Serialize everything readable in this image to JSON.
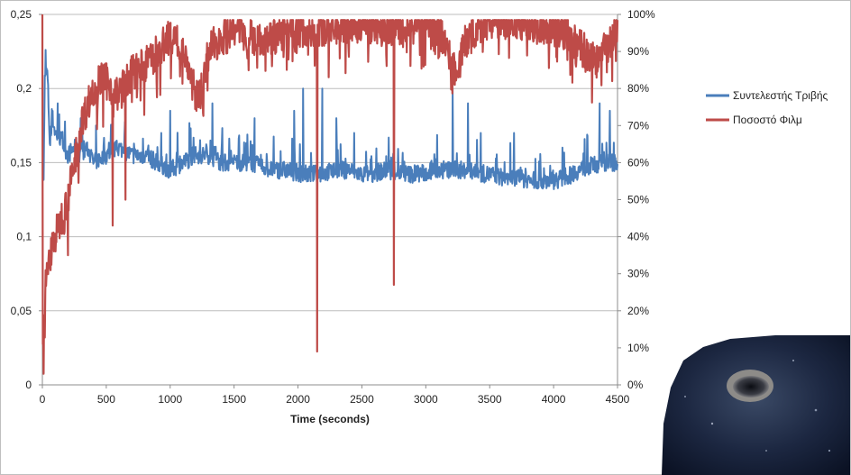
{
  "chart_data": {
    "type": "line",
    "title": "",
    "xlabel": "Time (seconds)",
    "ylabel": "",
    "y2label": "",
    "xlim": [
      0,
      4500
    ],
    "ylim": [
      0,
      0.25
    ],
    "y2lim": [
      0,
      1.0
    ],
    "x_ticks": [
      0,
      500,
      1000,
      1500,
      2000,
      2500,
      3000,
      3500,
      4000,
      4500
    ],
    "x_tick_labels": [
      "0",
      "500",
      "1000",
      "1500",
      "2000",
      "2500",
      "3000",
      "3500",
      "4000",
      "4500"
    ],
    "y_ticks": [
      0,
      0.05,
      0.1,
      0.15,
      0.2,
      0.25
    ],
    "y_tick_labels": [
      "0",
      "0,05",
      "0,1",
      "0,15",
      "0,2",
      "0,25"
    ],
    "y2_ticks": [
      0,
      0.1,
      0.2,
      0.3,
      0.4,
      0.5,
      0.6,
      0.7,
      0.8,
      0.9,
      1.0
    ],
    "y2_tick_labels": [
      "0%",
      "10%",
      "20%",
      "30%",
      "40%",
      "50%",
      "60%",
      "70%",
      "80%",
      "90%",
      "100%"
    ],
    "grid": "horizontal",
    "legend_position": "right",
    "series": [
      {
        "name": "Συντελεστής Τριβής",
        "axis": "left",
        "color": "#4a7ebb",
        "x": [
          0,
          10,
          20,
          40,
          60,
          80,
          100,
          150,
          200,
          250,
          300,
          350,
          400,
          500,
          600,
          700,
          800,
          900,
          1000,
          1100,
          1200,
          1300,
          1400,
          1500,
          1600,
          1700,
          1800,
          1900,
          2000,
          2100,
          2200,
          2300,
          2400,
          2500,
          2600,
          2700,
          2800,
          2900,
          3000,
          3100,
          3200,
          3300,
          3400,
          3500,
          3600,
          3700,
          3800,
          3900,
          4000,
          4100,
          4200,
          4300,
          4400,
          4500
        ],
        "values": [
          0.15,
          0.14,
          0.21,
          0.21,
          0.16,
          0.18,
          0.17,
          0.165,
          0.155,
          0.16,
          0.155,
          0.16,
          0.15,
          0.155,
          0.16,
          0.155,
          0.155,
          0.15,
          0.145,
          0.15,
          0.155,
          0.155,
          0.15,
          0.15,
          0.15,
          0.148,
          0.145,
          0.145,
          0.143,
          0.142,
          0.143,
          0.145,
          0.145,
          0.142,
          0.143,
          0.145,
          0.143,
          0.142,
          0.143,
          0.145,
          0.145,
          0.145,
          0.143,
          0.142,
          0.14,
          0.14,
          0.138,
          0.138,
          0.138,
          0.14,
          0.145,
          0.148,
          0.15,
          0.15
        ],
        "spikes": [
          [
            120,
            0.19
          ],
          [
            300,
            0.18
          ],
          [
            420,
            0.175
          ],
          [
            930,
            0.17
          ],
          [
            1000,
            0.185
          ],
          [
            1330,
            0.19
          ],
          [
            1660,
            0.18
          ],
          [
            1970,
            0.185
          ],
          [
            2040,
            0.2
          ],
          [
            2190,
            0.2
          ],
          [
            2300,
            0.18
          ],
          [
            2440,
            0.17
          ],
          [
            3210,
            0.2
          ],
          [
            3330,
            0.19
          ],
          [
            3430,
            0.17
          ],
          [
            3690,
            0.17
          ],
          [
            4360,
            0.19
          ],
          [
            4440,
            0.185
          ]
        ]
      },
      {
        "name": "Ποσοστό Φιλμ",
        "axis": "right",
        "color": "#be4b48",
        "x": [
          0,
          10,
          20,
          40,
          60,
          80,
          100,
          150,
          200,
          250,
          300,
          350,
          400,
          450,
          500,
          550,
          600,
          650,
          700,
          800,
          900,
          1000,
          1100,
          1150,
          1200,
          1250,
          1300,
          1400,
          1500,
          1600,
          1700,
          1800,
          1900,
          2000,
          2100,
          2200,
          2300,
          2400,
          2500,
          2600,
          2700,
          2800,
          2900,
          3000,
          3100,
          3150,
          3200,
          3250,
          3300,
          3400,
          3500,
          3600,
          3700,
          3800,
          3900,
          4000,
          4100,
          4200,
          4300,
          4400,
          4500
        ],
        "values": [
          0.05,
          0.2,
          0.25,
          0.3,
          0.35,
          0.38,
          0.4,
          0.45,
          0.5,
          0.6,
          0.7,
          0.75,
          0.8,
          0.82,
          0.82,
          0.8,
          0.78,
          0.82,
          0.84,
          0.86,
          0.9,
          0.94,
          0.92,
          0.85,
          0.78,
          0.8,
          0.9,
          0.94,
          0.95,
          0.95,
          0.94,
          0.94,
          0.95,
          0.96,
          0.96,
          0.96,
          0.97,
          0.97,
          0.97,
          0.97,
          0.96,
          0.97,
          0.97,
          0.97,
          0.96,
          0.93,
          0.86,
          0.85,
          0.92,
          0.96,
          0.98,
          0.98,
          0.97,
          0.98,
          0.97,
          0.97,
          0.95,
          0.92,
          0.88,
          0.9,
          0.96
        ],
        "spikes": [
          [
            0,
            1.0
          ],
          [
            10,
            0.03
          ],
          [
            200,
            0.35
          ],
          [
            550,
            0.43
          ],
          [
            650,
            0.5
          ],
          [
            2150,
            0.09
          ],
          [
            2750,
            0.27
          ]
        ]
      }
    ]
  },
  "inset_photo": {
    "alt": "micrograph of wear track"
  }
}
